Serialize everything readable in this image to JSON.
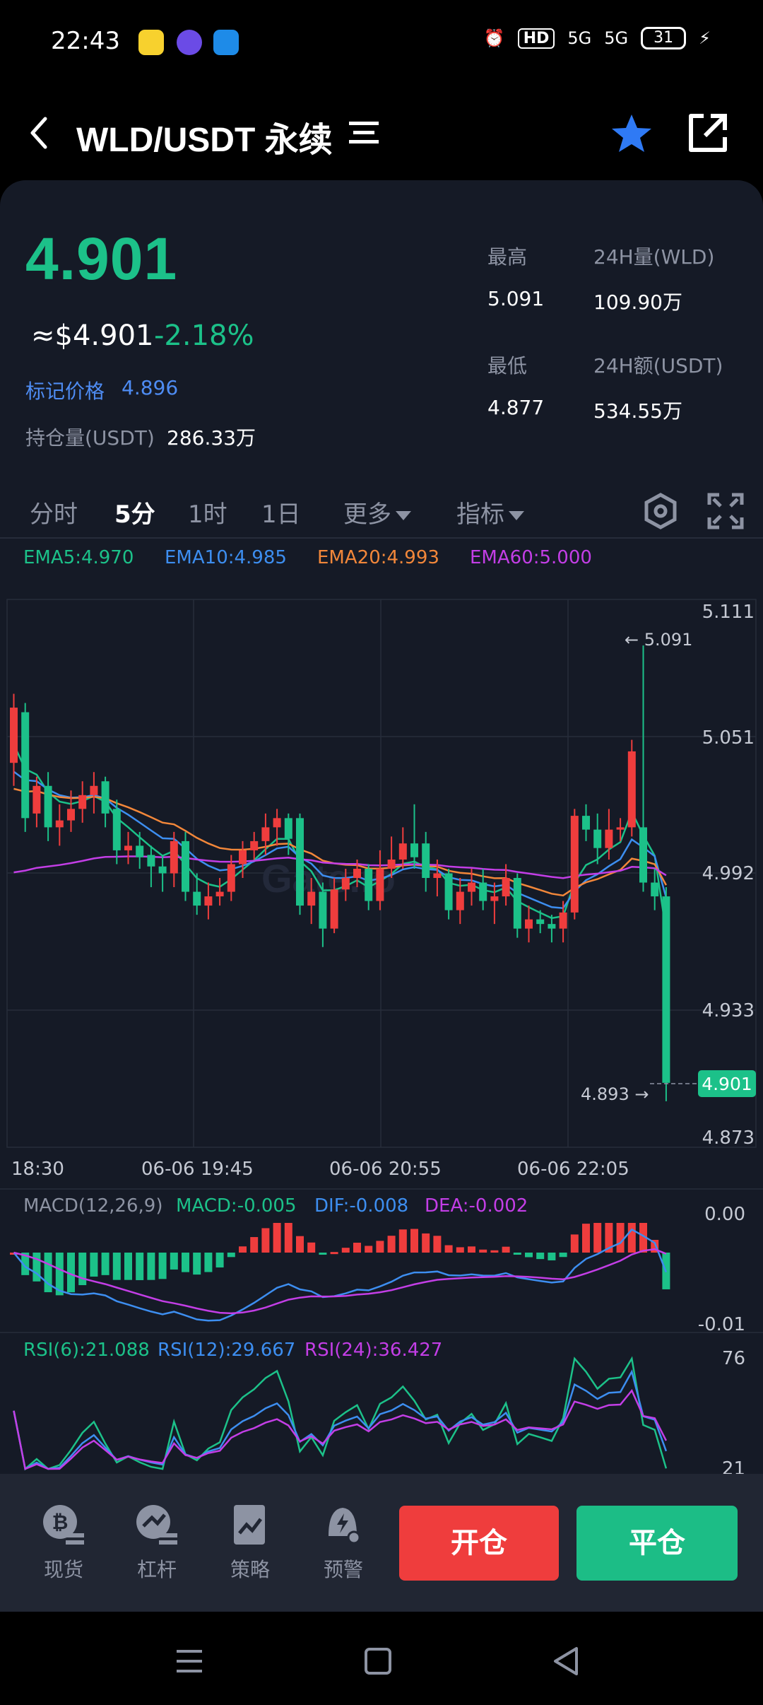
{
  "status_bar": {
    "time": "22:43",
    "network_1": "5G",
    "network_2": "5G",
    "hd_badge": "HD",
    "battery": "31"
  },
  "header": {
    "title": "WLD/USDT 永续",
    "back_icon": "chevron-left-icon",
    "menu_icon": "list-menu-icon",
    "favorite_icon": "star-icon",
    "share_icon": "share-icon"
  },
  "ticker": {
    "last_price": "4.901",
    "usd_price": "≈$4.901",
    "change_pct": "-2.18%",
    "mark_label": "标记价格",
    "mark_price": "4.896",
    "oi_label": "持仓量(USDT)",
    "oi_value": "286.33万",
    "high_label": "最高",
    "high_value": "5.091",
    "low_label": "最低",
    "low_value": "4.877",
    "vol_label": "24H量(WLD)",
    "vol_value": "109.90万",
    "amt_label": "24H额(USDT)",
    "amt_value": "534.55万"
  },
  "tabs": {
    "items": [
      "分时",
      "5分",
      "1时",
      "1日"
    ],
    "more": "更多",
    "indicators": "指标",
    "active": "5分"
  },
  "ema": {
    "ema5": "EMA5:4.970",
    "ema10": "EMA10:4.985",
    "ema20": "EMA20:4.993",
    "ema60": "EMA60:5.000"
  },
  "chart_data": {
    "type": "candlestick",
    "interval": "5m",
    "watermark": "Gate.io",
    "y_ticks": [
      "5.111",
      "5.051",
      "4.992",
      "4.933",
      "4.873"
    ],
    "ylim": [
      4.873,
      5.111
    ],
    "x_ticks": [
      "18:30",
      "06-06 19:45",
      "06-06 20:55",
      "06-06 22:05"
    ],
    "high_marker": "← 5.091",
    "low_marker": "4.893 →",
    "current_price_tag": "4.901",
    "candles": [
      [
        5.04,
        5.064,
        5.07,
        5.03
      ],
      [
        5.062,
        5.016,
        5.066,
        5.01
      ],
      [
        5.018,
        5.03,
        5.034,
        5.012
      ],
      [
        5.03,
        5.012,
        5.036,
        5.006
      ],
      [
        5.012,
        5.015,
        5.022,
        5.004
      ],
      [
        5.015,
        5.02,
        5.028,
        5.01
      ],
      [
        5.02,
        5.026,
        5.032,
        5.014
      ],
      [
        5.026,
        5.03,
        5.036,
        5.018
      ],
      [
        5.032,
        5.018,
        5.034,
        5.012
      ],
      [
        5.02,
        5.002,
        5.024,
        4.996
      ],
      [
        5.002,
        5.004,
        5.01,
        4.996
      ],
      [
        5.004,
        4.999,
        5.01,
        4.994
      ],
      [
        5.0,
        4.995,
        5.004,
        4.986
      ],
      [
        4.995,
        4.992,
        5.0,
        4.984
      ],
      [
        4.992,
        5.006,
        5.01,
        4.986
      ],
      [
        5.006,
        4.984,
        5.01,
        4.98
      ],
      [
        4.984,
        4.978,
        4.992,
        4.974
      ],
      [
        4.978,
        4.982,
        4.988,
        4.972
      ],
      [
        4.982,
        4.984,
        4.99,
        4.978
      ],
      [
        4.984,
        4.996,
        5.0,
        4.98
      ],
      [
        4.996,
        5.002,
        5.006,
        4.99
      ],
      [
        5.002,
        5.006,
        5.01,
        4.998
      ],
      [
        5.006,
        5.012,
        5.018,
        5.0
      ],
      [
        5.012,
        5.016,
        5.02,
        5.004
      ],
      [
        5.016,
        5.007,
        5.018,
        5.0
      ],
      [
        5.016,
        4.978,
        5.018,
        4.974
      ],
      [
        4.978,
        4.984,
        4.99,
        4.97
      ],
      [
        4.984,
        4.968,
        4.988,
        4.96
      ],
      [
        4.968,
        4.985,
        4.99,
        4.966
      ],
      [
        4.985,
        4.99,
        4.994,
        4.98
      ],
      [
        4.99,
        4.994,
        4.998,
        4.986
      ],
      [
        4.994,
        4.98,
        4.996,
        4.976
      ],
      [
        4.98,
        4.994,
        5.002,
        4.976
      ],
      [
        4.994,
        4.998,
        5.008,
        4.99
      ],
      [
        4.998,
        5.005,
        5.012,
        4.994
      ],
      [
        5.005,
        4.999,
        5.022,
        4.994
      ],
      [
        5.005,
        4.99,
        5.01,
        4.984
      ],
      [
        4.99,
        4.992,
        4.998,
        4.982
      ],
      [
        4.992,
        4.976,
        4.994,
        4.972
      ],
      [
        4.976,
        4.984,
        4.99,
        4.97
      ],
      [
        4.984,
        4.988,
        4.994,
        4.978
      ],
      [
        4.988,
        4.98,
        4.994,
        4.976
      ],
      [
        4.98,
        4.982,
        4.988,
        4.97
      ],
      [
        4.982,
        4.99,
        4.996,
        4.978
      ],
      [
        4.99,
        4.968,
        4.992,
        4.964
      ],
      [
        4.968,
        4.972,
        4.978,
        4.962
      ],
      [
        4.972,
        4.97,
        4.976,
        4.966
      ],
      [
        4.97,
        4.968,
        4.974,
        4.962
      ],
      [
        4.968,
        4.975,
        4.98,
        4.962
      ],
      [
        4.975,
        5.017,
        5.02,
        4.972
      ],
      [
        5.017,
        5.011,
        5.022,
        5.006
      ],
      [
        5.011,
        5.003,
        5.018,
        4.996
      ],
      [
        5.003,
        5.011,
        5.02,
        4.998
      ],
      [
        5.011,
        5.012,
        5.016,
        5.006
      ],
      [
        5.012,
        5.045,
        5.05,
        5.008
      ],
      [
        5.012,
        4.988,
        5.091,
        4.984
      ],
      [
        4.988,
        4.982,
        4.994,
        4.976
      ],
      [
        4.982,
        4.901,
        4.986,
        4.893
      ]
    ]
  },
  "macd": {
    "label": "MACD(12,26,9)",
    "macd": "MACD:-0.005",
    "dif": "DIF:-0.008",
    "dea": "DEA:-0.002",
    "y_ticks": [
      "0.00",
      "-0.01"
    ]
  },
  "rsi": {
    "rsi6": "RSI(6):21.088",
    "rsi12": "RSI(12):29.667",
    "rsi24": "RSI(24):36.427",
    "y_ticks": [
      "76",
      "21"
    ]
  },
  "bottom_nav": {
    "items": [
      "现货",
      "杠杆",
      "策略",
      "预警"
    ],
    "open_button": "开仓",
    "close_button": "平仓"
  },
  "colors": {
    "up": "#ef3d3d",
    "down": "#1cc189",
    "ema5": "#1cc189",
    "ema10": "#3d8ef0",
    "ema20": "#f2873a",
    "ema60": "#c33ee6"
  }
}
